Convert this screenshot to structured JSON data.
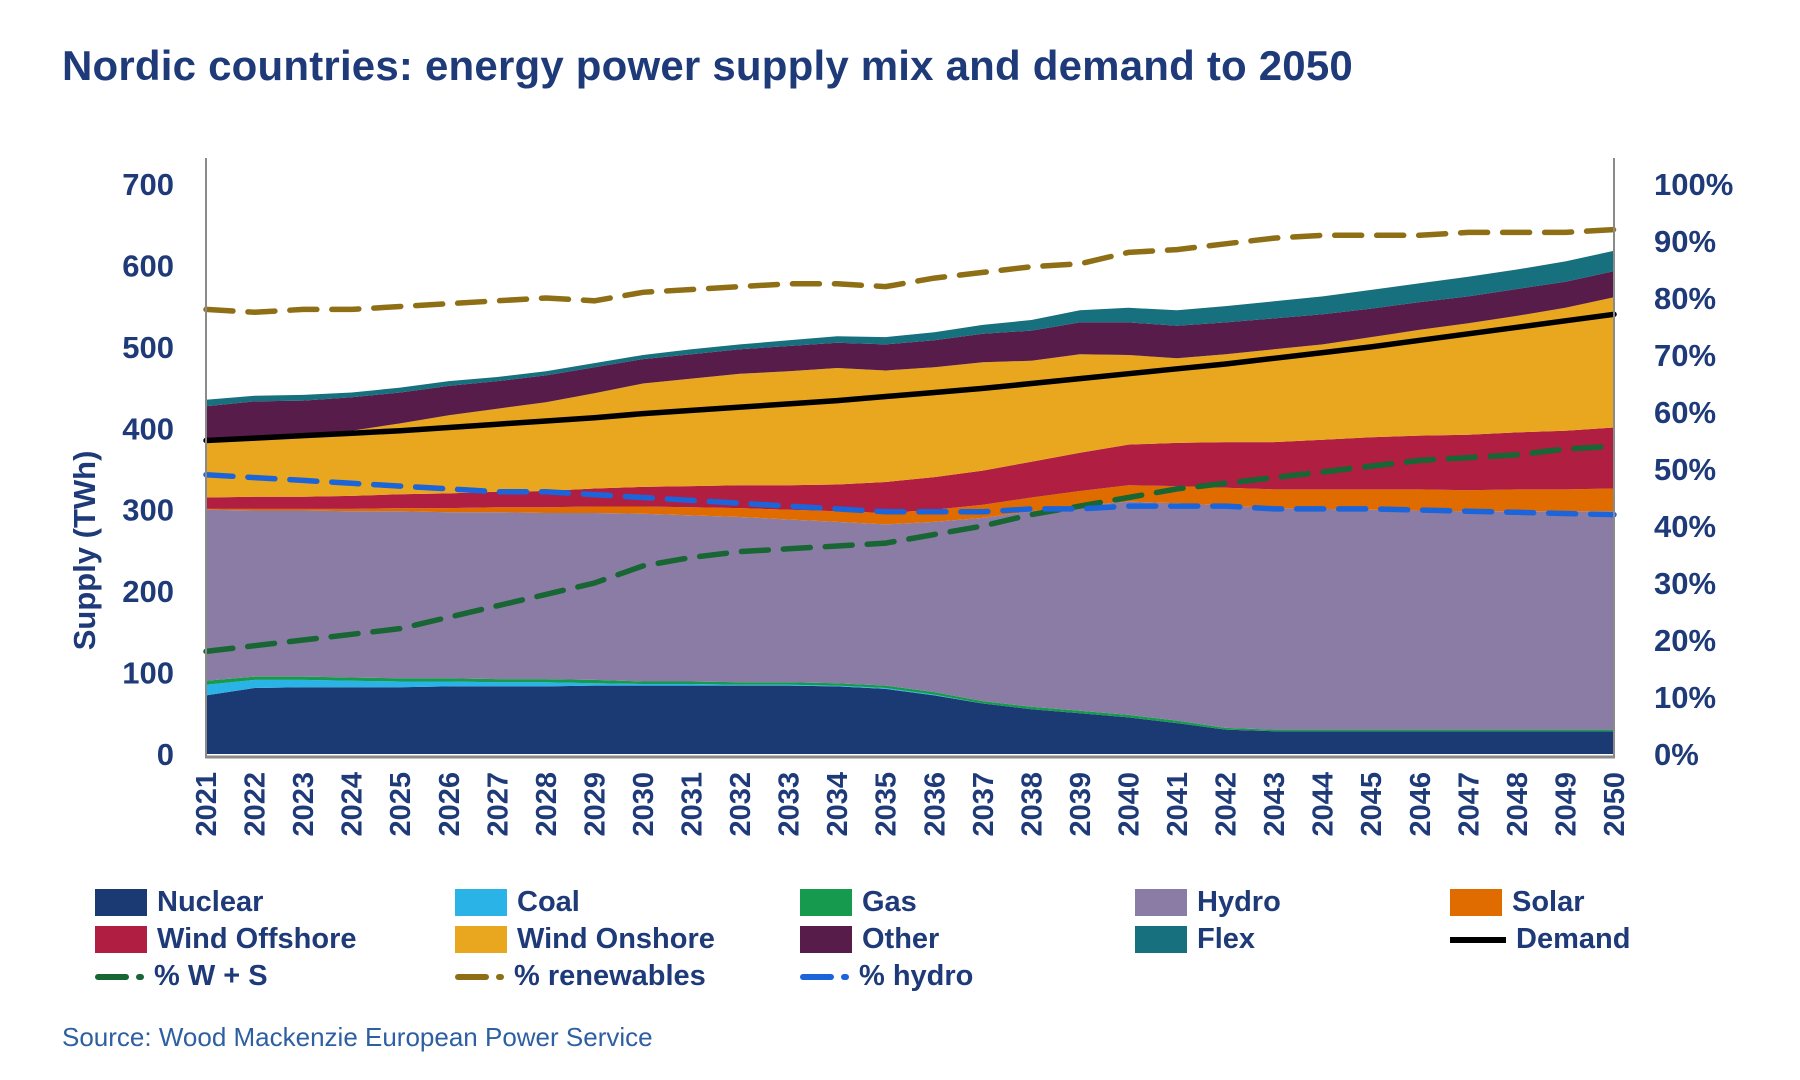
{
  "title": "Nordic countries: energy power supply mix and demand to 2050",
  "source": "Source: Wood Mackenzie European Power Service",
  "colors": {
    "text": "#1e3a78",
    "axis_line": "#8a8a8a",
    "nuclear": "#1b3a73",
    "coal": "#2ab3e6",
    "gas": "#169a4e",
    "hydro": "#8b7ca6",
    "solar": "#e06c00",
    "wind_offshore": "#b01e42",
    "wind_onshore": "#e8a71e",
    "other": "#571c4a",
    "flex": "#17707e",
    "demand": "#000000",
    "pct_ws": "#176633",
    "pct_renewables": "#8f6f15",
    "pct_hydro": "#1c64d9"
  },
  "legend": [
    {
      "label": "Nuclear",
      "swatch": "box",
      "color": "nuclear"
    },
    {
      "label": "Coal",
      "swatch": "box",
      "color": "coal"
    },
    {
      "label": "Gas",
      "swatch": "box",
      "color": "gas"
    },
    {
      "label": "Hydro",
      "swatch": "box",
      "color": "hydro"
    },
    {
      "label": "Solar",
      "swatch": "box",
      "color": "solar"
    },
    {
      "label": "Wind Offshore",
      "swatch": "box",
      "color": "wind_offshore"
    },
    {
      "label": "Wind Onshore",
      "swatch": "box",
      "color": "wind_onshore"
    },
    {
      "label": "Other",
      "swatch": "box",
      "color": "other"
    },
    {
      "label": "Flex",
      "swatch": "box",
      "color": "flex"
    },
    {
      "label": "Demand",
      "swatch": "line",
      "color": "demand"
    },
    {
      "label": "% W + S",
      "swatch": "dash",
      "color": "pct_ws"
    },
    {
      "label": "% renewables",
      "swatch": "dash",
      "color": "pct_renewables"
    },
    {
      "label": "% hydro",
      "swatch": "dash",
      "color": "pct_hydro"
    }
  ],
  "chart_data": {
    "type": "area",
    "title": "Nordic countries: energy power supply mix and demand to 2050",
    "xlabel": "",
    "ylabel_left": "Supply (TWh)",
    "ylim_left": [
      0,
      700
    ],
    "left_ticks": [
      "0",
      "100",
      "200",
      "300",
      "400",
      "500",
      "600",
      "700"
    ],
    "ylim_right": [
      0,
      100
    ],
    "right_ticks": [
      "0%",
      "10%",
      "20%",
      "30%",
      "40%",
      "50%",
      "60%",
      "70%",
      "80%",
      "90%",
      "100%"
    ],
    "grid": false,
    "legend_position": "bottom",
    "x": [
      2021,
      2022,
      2023,
      2024,
      2025,
      2026,
      2027,
      2028,
      2029,
      2030,
      2031,
      2032,
      2033,
      2034,
      2035,
      2036,
      2037,
      2038,
      2039,
      2040,
      2041,
      2042,
      2043,
      2044,
      2045,
      2046,
      2047,
      2048,
      2049,
      2050
    ],
    "stack_order": [
      "Nuclear",
      "Coal",
      "Gas",
      "Hydro",
      "Solar",
      "Wind Offshore",
      "Wind Onshore",
      "Other",
      "Flex"
    ],
    "series": [
      {
        "name": "Nuclear",
        "kind": "area",
        "axis": "left",
        "color": "nuclear",
        "values": [
          72,
          81,
          82,
          82,
          82,
          83,
          83,
          83,
          84,
          84,
          84,
          84,
          84,
          83,
          80,
          72,
          62,
          55,
          50,
          45,
          38,
          30,
          28,
          28,
          28,
          28,
          28,
          28,
          28,
          28
        ]
      },
      {
        "name": "Coal",
        "kind": "area",
        "axis": "left",
        "color": "coal",
        "values": [
          13,
          10,
          9,
          8,
          7,
          6,
          5,
          5,
          3,
          2,
          2,
          1,
          1,
          1,
          1,
          1,
          0,
          0,
          0,
          0,
          0,
          0,
          0,
          0,
          0,
          0,
          0,
          0,
          0,
          0
        ]
      },
      {
        "name": "Gas",
        "kind": "area",
        "axis": "left",
        "color": "gas",
        "values": [
          5,
          4,
          4,
          4,
          4,
          4,
          4,
          4,
          4,
          3,
          3,
          3,
          3,
          3,
          3,
          3,
          3,
          3,
          3,
          3,
          3,
          2,
          2,
          2,
          2,
          2,
          2,
          2,
          2,
          2
        ]
      },
      {
        "name": "Hydro",
        "kind": "area",
        "axis": "left",
        "color": "hydro",
        "values": [
          210,
          204,
          204,
          204,
          205,
          204,
          205,
          204,
          205,
          206,
          204,
          203,
          200,
          198,
          198,
          209,
          225,
          240,
          252,
          262,
          267,
          273,
          272,
          271,
          270,
          269,
          268,
          268,
          268,
          268
        ]
      },
      {
        "name": "Solar",
        "kind": "area",
        "axis": "left",
        "color": "solar",
        "values": [
          1,
          2,
          2,
          3,
          4,
          5,
          6,
          7,
          8,
          9,
          10,
          11,
          12,
          13,
          14,
          15,
          16,
          17,
          18,
          20,
          21,
          22,
          23,
          24,
          25,
          26,
          26,
          27,
          27,
          28
        ]
      },
      {
        "name": "Wind Offshore",
        "kind": "area",
        "axis": "left",
        "color": "wind_offshore",
        "values": [
          14,
          15,
          15,
          16,
          17,
          18,
          19,
          20,
          22,
          24,
          26,
          28,
          30,
          33,
          38,
          40,
          42,
          44,
          47,
          50,
          53,
          56,
          58,
          61,
          64,
          66,
          68,
          70,
          72,
          75
        ]
      },
      {
        "name": "Wind Onshore",
        "kind": "area",
        "axis": "left",
        "color": "wind_onshore",
        "values": [
          67,
          73,
          76,
          80,
          87,
          96,
          102,
          109,
          117,
          127,
          132,
          137,
          140,
          143,
          137,
          135,
          133,
          124,
          121,
          110,
          104,
          108,
          114,
          117,
          123,
          130,
          137,
          143,
          151,
          160
        ]
      },
      {
        "name": "Other",
        "kind": "area",
        "axis": "left",
        "color": "other",
        "values": [
          45,
          44,
          42,
          41,
          38,
          36,
          34,
          33,
          32,
          30,
          30,
          30,
          31,
          31,
          32,
          33,
          35,
          37,
          39,
          40,
          40,
          39,
          38,
          37,
          35,
          34,
          33,
          33,
          32,
          32
        ]
      },
      {
        "name": "Flex",
        "kind": "area",
        "axis": "left",
        "color": "flex",
        "values": [
          8,
          7,
          7,
          6,
          6,
          6,
          5,
          5,
          5,
          5,
          6,
          6,
          7,
          8,
          9,
          10,
          11,
          13,
          15,
          18,
          19,
          20,
          21,
          22,
          23,
          23,
          24,
          24,
          25,
          25
        ]
      },
      {
        "name": "Demand",
        "kind": "line",
        "axis": "left",
        "color": "demand",
        "values": [
          385,
          388,
          391,
          394,
          397,
          401,
          405,
          409,
          413,
          418,
          422,
          426,
          430,
          434,
          439,
          444,
          449,
          455,
          461,
          467,
          473,
          479,
          486,
          493,
          500,
          508,
          516,
          524,
          532,
          540
        ]
      },
      {
        "name": "% W + S",
        "kind": "dashed",
        "axis": "right",
        "color": "pct_ws",
        "values": [
          18,
          19,
          20,
          21,
          22,
          24,
          26,
          28,
          30,
          33,
          34.5,
          35.5,
          36,
          36.5,
          37,
          38.5,
          40,
          42,
          43.5,
          45,
          46.5,
          47.5,
          48.5,
          49.5,
          50.5,
          51.5,
          52,
          52.5,
          53.5,
          54
        ]
      },
      {
        "name": "% renewables",
        "kind": "dashed",
        "axis": "right",
        "color": "pct_renewables",
        "values": [
          78,
          77.5,
          78,
          78,
          78.5,
          79,
          79.5,
          80,
          79.5,
          81,
          81.5,
          82,
          82.5,
          82.5,
          82,
          83.5,
          84.5,
          85.5,
          86,
          88,
          88.5,
          89.5,
          90.5,
          91,
          91,
          91,
          91.5,
          91.5,
          91.5,
          92
        ]
      },
      {
        "name": "% hydro",
        "kind": "dashed",
        "axis": "right",
        "color": "pct_hydro",
        "values": [
          49,
          48.5,
          48,
          47.5,
          47,
          46.5,
          46,
          46,
          45.5,
          45,
          44.5,
          44,
          43.5,
          43,
          42.5,
          42.5,
          42.5,
          43,
          43,
          43.5,
          43.5,
          43.5,
          43,
          43,
          43,
          42.8,
          42.6,
          42.4,
          42.2,
          42
        ]
      }
    ]
  }
}
